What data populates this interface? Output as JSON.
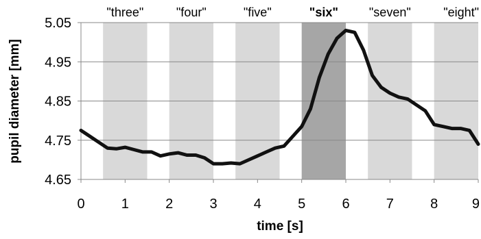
{
  "chart_data": {
    "type": "line",
    "xlabel": "time [s]",
    "ylabel": "pupil diameter [mm]",
    "xlim": [
      0,
      9
    ],
    "ylim": [
      4.65,
      5.05
    ],
    "x_ticks": [
      "0",
      "1",
      "2",
      "3",
      "4",
      "5",
      "6",
      "7",
      "8",
      "9"
    ],
    "y_ticks": [
      "4.65",
      "4.75",
      "4.85",
      "4.95",
      "5.05"
    ],
    "grid": "horizontal",
    "segments": [
      {
        "label": "\"three\"",
        "start": 0.5,
        "end": 1.5,
        "highlight": false
      },
      {
        "label": "\"four\"",
        "start": 2.0,
        "end": 3.0,
        "highlight": false
      },
      {
        "label": "\"five\"",
        "start": 3.5,
        "end": 4.5,
        "highlight": false
      },
      {
        "label": "\"six\"",
        "start": 5.0,
        "end": 6.0,
        "highlight": true
      },
      {
        "label": "\"seven\"",
        "start": 6.5,
        "end": 7.5,
        "highlight": false
      },
      {
        "label": "\"eight\"",
        "start": 8.0,
        "end": 9.0,
        "highlight": false
      }
    ],
    "series": [
      {
        "x": [
          0,
          0.2,
          0.4,
          0.6,
          0.8,
          1.0,
          1.2,
          1.4,
          1.6,
          1.8,
          2.0,
          2.2,
          2.4,
          2.6,
          2.8,
          3.0,
          3.2,
          3.4,
          3.6,
          3.8,
          4.0,
          4.2,
          4.4,
          4.6,
          4.8,
          5.0,
          5.2,
          5.4,
          5.6,
          5.8,
          6.0,
          6.2,
          6.4,
          6.6,
          6.8,
          7.0,
          7.2,
          7.4,
          7.6,
          7.8,
          8.0,
          8.2,
          8.4,
          8.6,
          8.8,
          9.0
        ],
        "y": [
          4.775,
          4.76,
          4.745,
          4.73,
          4.728,
          4.732,
          4.726,
          4.72,
          4.72,
          4.71,
          4.715,
          4.718,
          4.712,
          4.712,
          4.705,
          4.69,
          4.69,
          4.692,
          4.69,
          4.7,
          4.71,
          4.72,
          4.73,
          4.735,
          4.76,
          4.785,
          4.83,
          4.91,
          4.97,
          5.01,
          5.03,
          5.025,
          4.98,
          4.915,
          4.885,
          4.87,
          4.86,
          4.855,
          4.84,
          4.825,
          4.79,
          4.785,
          4.78,
          4.78,
          4.775,
          4.74
        ]
      }
    ]
  }
}
